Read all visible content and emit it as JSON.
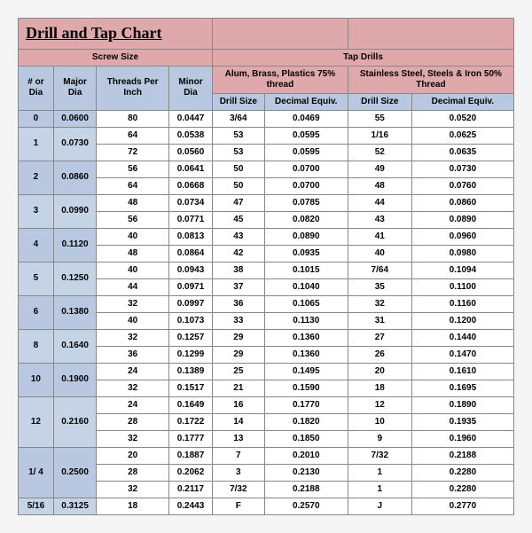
{
  "title": "Drill and Tap Chart",
  "headers": {
    "screwSize": "Screw Size",
    "tapDrills": "Tap Drills",
    "mat1": "Alum, Brass, Plastics 75% thread",
    "mat2": "Stainless Steel, Steels & Iron 50% Thread",
    "numOrDia": "# or Dia",
    "majorDia": "Major Dia",
    "tpi": "Threads Per Inch",
    "minorDia": "Minor Dia",
    "drillSize": "Drill Size",
    "decEquiv": "Decimal Equiv."
  },
  "colors": {
    "pink": "#dfa9ab",
    "blue": "#b7c8e0",
    "blue2": "#c5d3e6"
  },
  "rows": [
    {
      "numDia": "0",
      "major": "0.0600",
      "tpi": "80",
      "minor": "0.0447",
      "d1": "3/64",
      "de1": "0.0469",
      "d2": "55",
      "de2": "0.0520",
      "span": 1
    },
    {
      "numDia": "1",
      "major": "0.0730",
      "tpi": "64",
      "minor": "0.0538",
      "d1": "53",
      "de1": "0.0595",
      "d2": "1/16",
      "de2": "0.0625",
      "span": 2
    },
    {
      "tpi": "72",
      "minor": "0.0560",
      "d1": "53",
      "de1": "0.0595",
      "d2": "52",
      "de2": "0.0635"
    },
    {
      "numDia": "2",
      "major": "0.0860",
      "tpi": "56",
      "minor": "0.0641",
      "d1": "50",
      "de1": "0.0700",
      "d2": "49",
      "de2": "0.0730",
      "span": 2
    },
    {
      "tpi": "64",
      "minor": "0.0668",
      "d1": "50",
      "de1": "0.0700",
      "d2": "48",
      "de2": "0.0760"
    },
    {
      "numDia": "3",
      "major": "0.0990",
      "tpi": "48",
      "minor": "0.0734",
      "d1": "47",
      "de1": "0.0785",
      "d2": "44",
      "de2": "0.0860",
      "span": 2
    },
    {
      "tpi": "56",
      "minor": "0.0771",
      "d1": "45",
      "de1": "0.0820",
      "d2": "43",
      "de2": "0.0890"
    },
    {
      "numDia": "4",
      "major": "0.1120",
      "tpi": "40",
      "minor": "0.0813",
      "d1": "43",
      "de1": "0.0890",
      "d2": "41",
      "de2": "0.0960",
      "span": 2
    },
    {
      "tpi": "48",
      "minor": "0.0864",
      "d1": "42",
      "de1": "0.0935",
      "d2": "40",
      "de2": "0.0980"
    },
    {
      "numDia": "5",
      "major": "0.1250",
      "tpi": "40",
      "minor": "0.0943",
      "d1": "38",
      "de1": "0.1015",
      "d2": "7/64",
      "de2": "0.1094",
      "span": 2
    },
    {
      "tpi": "44",
      "minor": "0.0971",
      "d1": "37",
      "de1": "0.1040",
      "d2": "35",
      "de2": "0.1100"
    },
    {
      "numDia": "6",
      "major": "0.1380",
      "tpi": "32",
      "minor": "0.0997",
      "d1": "36",
      "de1": "0.1065",
      "d2": "32",
      "de2": "0.1160",
      "span": 2
    },
    {
      "tpi": "40",
      "minor": "0.1073",
      "d1": "33",
      "de1": "0.1130",
      "d2": "31",
      "de2": "0.1200"
    },
    {
      "numDia": "8",
      "major": "0.1640",
      "tpi": "32",
      "minor": "0.1257",
      "d1": "29",
      "de1": "0.1360",
      "d2": "27",
      "de2": "0.1440",
      "span": 2
    },
    {
      "tpi": "36",
      "minor": "0.1299",
      "d1": "29",
      "de1": "0.1360",
      "d2": "26",
      "de2": "0.1470"
    },
    {
      "numDia": "10",
      "major": "0.1900",
      "tpi": "24",
      "minor": "0.1389",
      "d1": "25",
      "de1": "0.1495",
      "d2": "20",
      "de2": "0.1610",
      "span": 2
    },
    {
      "tpi": "32",
      "minor": "0.1517",
      "d1": "21",
      "de1": "0.1590",
      "d2": "18",
      "de2": "0.1695"
    },
    {
      "numDia": "12",
      "major": "0.2160",
      "tpi": "24",
      "minor": "0.1649",
      "d1": "16",
      "de1": "0.1770",
      "d2": "12",
      "de2": "0.1890",
      "span": 3
    },
    {
      "tpi": "28",
      "minor": "0.1722",
      "d1": "14",
      "de1": "0.1820",
      "d2": "10",
      "de2": "0.1935"
    },
    {
      "tpi": "32",
      "minor": "0.1777",
      "d1": "13",
      "de1": "0.1850",
      "d2": "9",
      "de2": "0.1960"
    },
    {
      "numDia": "1/ 4",
      "major": "0.2500",
      "tpi": "20",
      "minor": "0.1887",
      "d1": "7",
      "de1": "0.2010",
      "d2": "7/32",
      "de2": "0.2188",
      "span": 3
    },
    {
      "tpi": "28",
      "minor": "0.2062",
      "d1": "3",
      "de1": "0.2130",
      "d2": "1",
      "de2": "0.2280"
    },
    {
      "tpi": "32",
      "minor": "0.2117",
      "d1": "7/32",
      "de1": "0.2188",
      "d2": "1",
      "de2": "0.2280"
    },
    {
      "numDia": "5/16",
      "major": "0.3125",
      "tpi": "18",
      "minor": "0.2443",
      "d1": "F",
      "de1": "0.2570",
      "d2": "J",
      "de2": "0.2770",
      "span": 1
    }
  ]
}
